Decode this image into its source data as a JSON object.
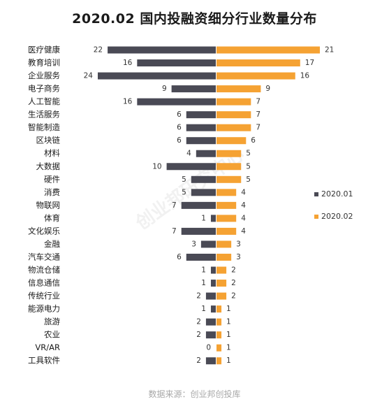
{
  "title": "2020.02 国内投融资细分行业数量分布",
  "source": "数据来源：创业邦创投库",
  "watermark": "创业邦研究中心",
  "colors": {
    "series1": "#4a4a55",
    "series2": "#f5a233"
  },
  "chart_data": {
    "type": "bar",
    "orientation": "butterfly",
    "categories": [
      "医疗健康",
      "教育培训",
      "企业服务",
      "电子商务",
      "人工智能",
      "生活服务",
      "智能制造",
      "区块链",
      "材料",
      "大数据",
      "硬件",
      "消费",
      "物联网",
      "体育",
      "文化娱乐",
      "金融",
      "汽车交通",
      "物流仓储",
      "信息通信",
      "传统行业",
      "能源电力",
      "旅游",
      "农业",
      "VR/AR",
      "工具软件"
    ],
    "series": [
      {
        "name": "2020.01",
        "values": [
          22,
          16,
          24,
          9,
          16,
          6,
          6,
          6,
          4,
          10,
          5,
          5,
          7,
          1,
          7,
          3,
          6,
          1,
          1,
          2,
          1,
          2,
          2,
          0,
          2
        ]
      },
      {
        "name": "2020.02",
        "values": [
          21,
          17,
          16,
          9,
          7,
          7,
          7,
          6,
          5,
          5,
          5,
          4,
          4,
          4,
          4,
          3,
          3,
          2,
          2,
          2,
          1,
          1,
          1,
          1,
          1
        ]
      }
    ],
    "legend": "right"
  }
}
